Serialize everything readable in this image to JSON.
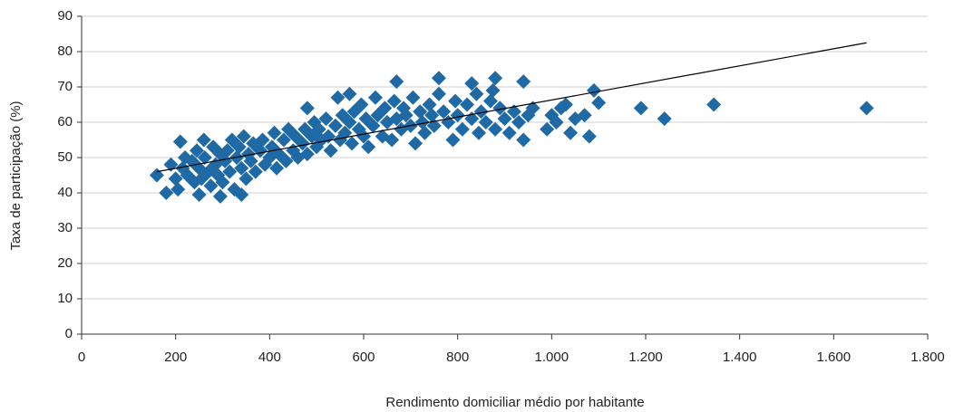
{
  "chart_data": {
    "type": "scatter",
    "x_label": "Rendimento domiciliar médio por habitante",
    "y_label": "Taxa de participação (%)",
    "color": "#1f6aa5",
    "xlim": [
      0,
      1800
    ],
    "xticks": [
      0,
      200,
      400,
      600,
      800,
      {
        "value": 1000,
        "label": "1.000"
      },
      {
        "value": 1200,
        "label": "1.200"
      },
      {
        "value": 1400,
        "label": "1.400"
      },
      {
        "value": 1600,
        "label": "1.600"
      },
      {
        "value": 1800,
        "label": "1.800"
      }
    ],
    "ylim": [
      0,
      90
    ],
    "yticks": [
      0,
      10,
      20,
      30,
      40,
      50,
      60,
      70,
      80,
      90
    ],
    "grid": true,
    "x": [
      190,
      200,
      205,
      215,
      220,
      225,
      235,
      240,
      245,
      250,
      255,
      260,
      262,
      270,
      275,
      280,
      285,
      290,
      295,
      300,
      305,
      310,
      315,
      320,
      325,
      330,
      335,
      340,
      345,
      350,
      355,
      360,
      365,
      370,
      380,
      385,
      390,
      400,
      405,
      410,
      415,
      420,
      430,
      435,
      440,
      450,
      455,
      460,
      470,
      475,
      480,
      490,
      495,
      500,
      505,
      510,
      520,
      525,
      530,
      540,
      545,
      550,
      555,
      560,
      570,
      575,
      580,
      590,
      595,
      600,
      605,
      610,
      620,
      625,
      630,
      640,
      645,
      650,
      660,
      665,
      670,
      680,
      685,
      690,
      700,
      705,
      710,
      720,
      725,
      730,
      740,
      745,
      750,
      760,
      770,
      780,
      790,
      795,
      800,
      810,
      820,
      830,
      840,
      845,
      850,
      860,
      870,
      875,
      880,
      890,
      900,
      910,
      920,
      930,
      950,
      960,
      1000,
      1010,
      1020,
      1050,
      1190,
      1240,
      1345,
      1670,
      1100,
      1090,
      1080,
      1040,
      1030,
      1070,
      990,
      940,
      940,
      880,
      830,
      760,
      670,
      570,
      480,
      210,
      160,
      180,
      250,
      295,
      340
    ],
    "y": [
      48,
      44,
      41,
      47,
      50,
      45,
      49,
      43,
      52,
      47,
      44,
      55,
      50,
      46,
      42,
      53,
      48,
      45,
      51,
      43,
      49,
      52,
      46,
      55,
      41,
      50,
      53,
      47,
      56,
      44,
      51,
      49,
      54,
      46,
      52,
      55,
      48,
      50,
      53,
      57,
      47,
      51,
      55,
      49,
      58,
      52,
      56,
      50,
      54,
      58,
      51,
      56,
      60,
      53,
      58,
      55,
      61,
      56,
      52,
      59,
      67,
      55,
      62,
      57,
      60,
      54,
      63,
      58,
      65,
      56,
      61,
      53,
      59,
      67,
      62,
      56,
      64,
      60,
      55,
      66,
      61,
      58,
      64,
      62,
      59,
      67,
      54,
      63,
      60,
      57,
      65,
      62,
      59,
      68,
      63,
      60,
      55,
      66,
      62,
      58,
      65,
      61,
      68,
      57,
      63,
      60,
      66,
      69,
      58,
      64,
      61,
      57,
      63,
      60,
      62,
      64,
      62,
      60,
      64,
      61,
      64,
      61,
      65,
      64,
      65.5,
      69,
      56,
      57,
      65,
      62,
      58,
      55,
      71.5,
      72.5,
      71,
      72.5,
      71.5,
      68,
      64,
      54.5,
      45,
      40,
      39.5,
      39,
      39.5
    ],
    "trendline": {
      "x": [
        160,
        1670
      ],
      "y": [
        46,
        82.5
      ]
    }
  }
}
